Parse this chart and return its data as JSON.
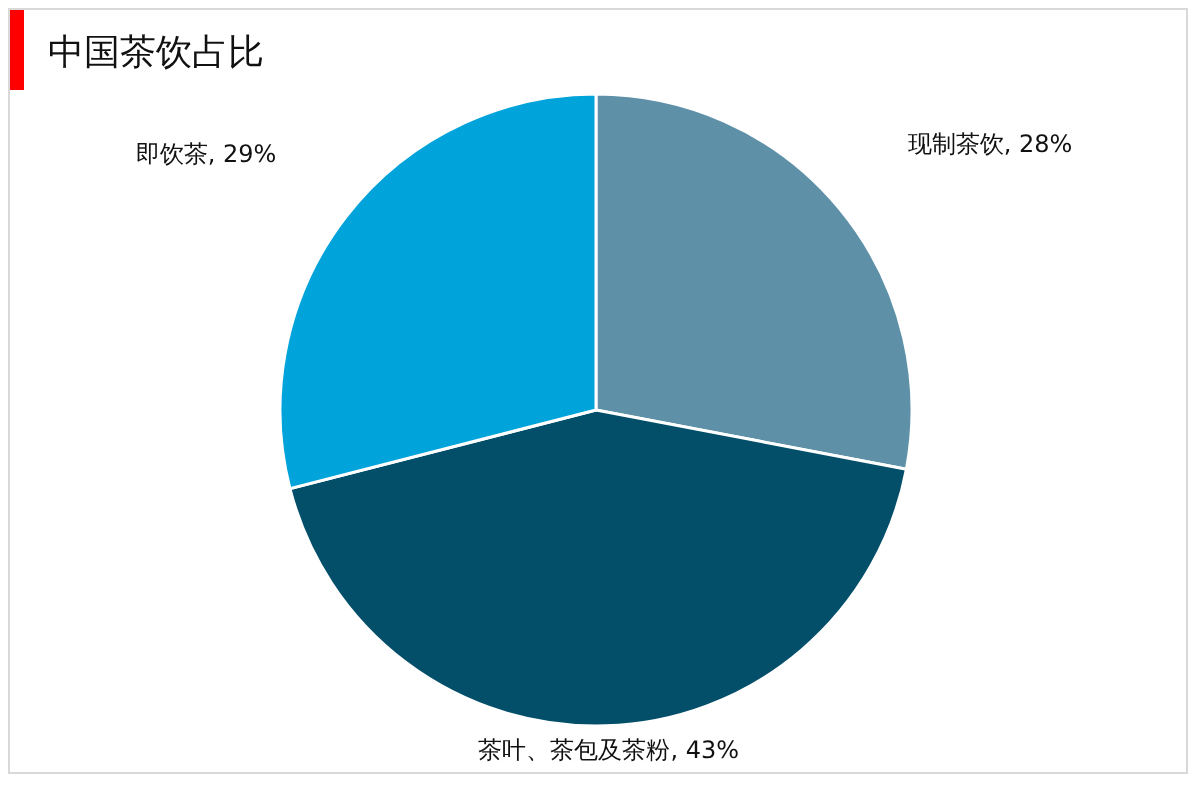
{
  "chart_data": {
    "type": "pie",
    "title": "中国茶饮占比",
    "categories": [
      "现制茶饮",
      "茶叶、茶包及茶粉",
      "即饮茶"
    ],
    "values": [
      28,
      43,
      29
    ],
    "value_labels": [
      "28%",
      "43%",
      "29%"
    ],
    "colors": [
      "#5e91a8",
      "#034f6a",
      "#00a3da"
    ]
  }
}
